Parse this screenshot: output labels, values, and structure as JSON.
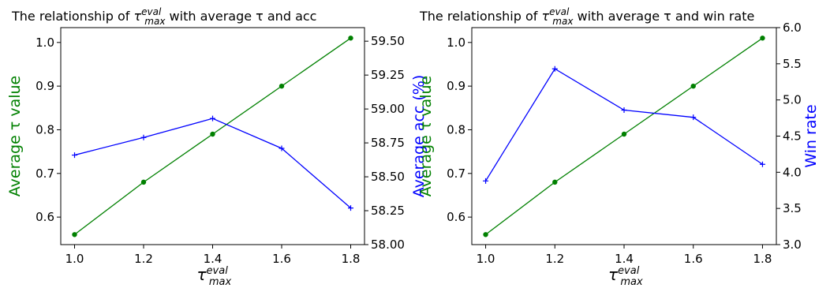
{
  "chart_data": [
    {
      "type": "line",
      "title": {
        "prefix": "The relationship of ",
        "symbol": "τ",
        "sup": "eval",
        "sub": "max",
        "suffix": " with average τ and acc"
      },
      "xlabel": {
        "symbol": "τ",
        "sup": "eval",
        "sub": "max"
      },
      "x": [
        1.0,
        1.2,
        1.4,
        1.6,
        1.8
      ],
      "x_tick_labels": [
        "1.0",
        "1.2",
        "1.4",
        "1.6",
        "1.8"
      ],
      "xlim": [
        0.96,
        1.84
      ],
      "left_axis": {
        "label": "Average τ value",
        "color": "#008000",
        "ylim": [
          0.537,
          1.034
        ],
        "ticks": [
          0.6,
          0.7,
          0.8,
          0.9,
          1.0
        ],
        "tick_labels": [
          "0.6",
          "0.7",
          "0.8",
          "0.9",
          "1.0"
        ]
      },
      "right_axis": {
        "label": "Average acc (%)",
        "color": "#0000ff",
        "ylim": [
          58.0,
          59.6
        ],
        "ticks": [
          58.0,
          58.25,
          58.5,
          58.75,
          59.0,
          59.25,
          59.5
        ],
        "tick_labels": [
          "58.00",
          "58.25",
          "58.50",
          "58.75",
          "59.00",
          "59.25",
          "59.50"
        ]
      },
      "series": [
        {
          "axis": "left",
          "color": "#008000",
          "marker": "dot",
          "values": [
            0.56,
            0.68,
            0.79,
            0.9,
            1.01
          ]
        },
        {
          "axis": "right",
          "color": "#0000ff",
          "marker": "plus",
          "values": [
            58.66,
            58.79,
            58.93,
            58.71,
            58.27
          ]
        }
      ],
      "grid": false
    },
    {
      "type": "line",
      "title": {
        "prefix": "The relationship of ",
        "symbol": "τ",
        "sup": "eval",
        "sub": "max",
        "suffix": " with average τ and win rate"
      },
      "xlabel": {
        "symbol": "τ",
        "sup": "eval",
        "sub": "max"
      },
      "x": [
        1.0,
        1.2,
        1.4,
        1.6,
        1.8
      ],
      "x_tick_labels": [
        "1.0",
        "1.2",
        "1.4",
        "1.6",
        "1.8"
      ],
      "xlim": [
        0.96,
        1.84
      ],
      "left_axis": {
        "label": "Average τ value",
        "color": "#008000",
        "ylim": [
          0.537,
          1.034
        ],
        "ticks": [
          0.6,
          0.7,
          0.8,
          0.9,
          1.0
        ],
        "tick_labels": [
          "0.6",
          "0.7",
          "0.8",
          "0.9",
          "1.0"
        ]
      },
      "right_axis": {
        "label": "Win rate",
        "color": "#0000ff",
        "ylim": [
          3.0,
          6.0
        ],
        "ticks": [
          3.0,
          3.5,
          4.0,
          4.5,
          5.0,
          5.5,
          6.0
        ],
        "tick_labels": [
          "3.0",
          "3.5",
          "4.0",
          "4.5",
          "5.0",
          "5.5",
          "6.0"
        ]
      },
      "series": [
        {
          "axis": "left",
          "color": "#008000",
          "marker": "dot",
          "values": [
            0.56,
            0.68,
            0.79,
            0.9,
            1.01
          ]
        },
        {
          "axis": "right",
          "color": "#0000ff",
          "marker": "plus",
          "values": [
            3.88,
            5.43,
            4.86,
            4.76,
            4.11
          ]
        }
      ],
      "grid": false
    }
  ]
}
